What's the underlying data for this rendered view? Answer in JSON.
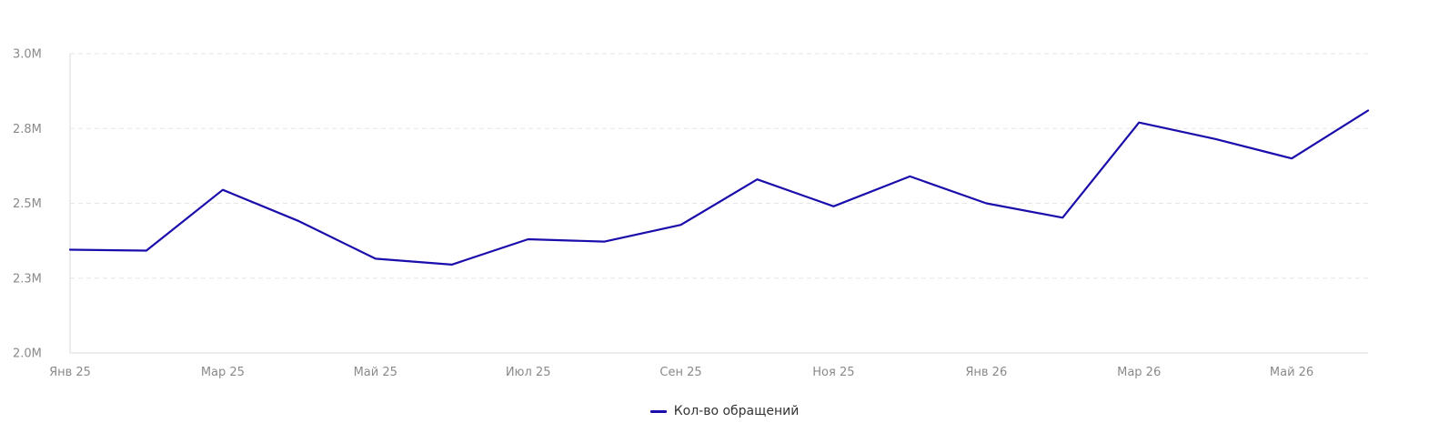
{
  "colors": {
    "series": "#1a0dab"
  },
  "chart_data": {
    "type": "line",
    "x_tick_labels": [
      "Янв 25",
      "Мар 25",
      "Май 25",
      "Июл 25",
      "Сен 25",
      "Ноя 25",
      "Янв 26",
      "Мар 26",
      "Май 26"
    ],
    "y_tick_labels": [
      "2.0M",
      "2.3M",
      "2.5M",
      "2.8M",
      "3.0M"
    ],
    "y_tick_values": [
      2000000,
      2250000,
      2500000,
      2750000,
      3000000
    ],
    "ylim": [
      2000000,
      3000000
    ],
    "grid": "horizontal dashed",
    "legend_position": "bottom-center",
    "series": [
      {
        "name": "Кол-во обращений",
        "color": "#1a0dab",
        "values": [
          2345000,
          2342000,
          2545000,
          2440000,
          2315000,
          2295000,
          2380000,
          2372000,
          2428000,
          2580000,
          2490000,
          2590000,
          2500000,
          2452000,
          2770000,
          2715000,
          2650000,
          2810000
        ]
      }
    ]
  }
}
